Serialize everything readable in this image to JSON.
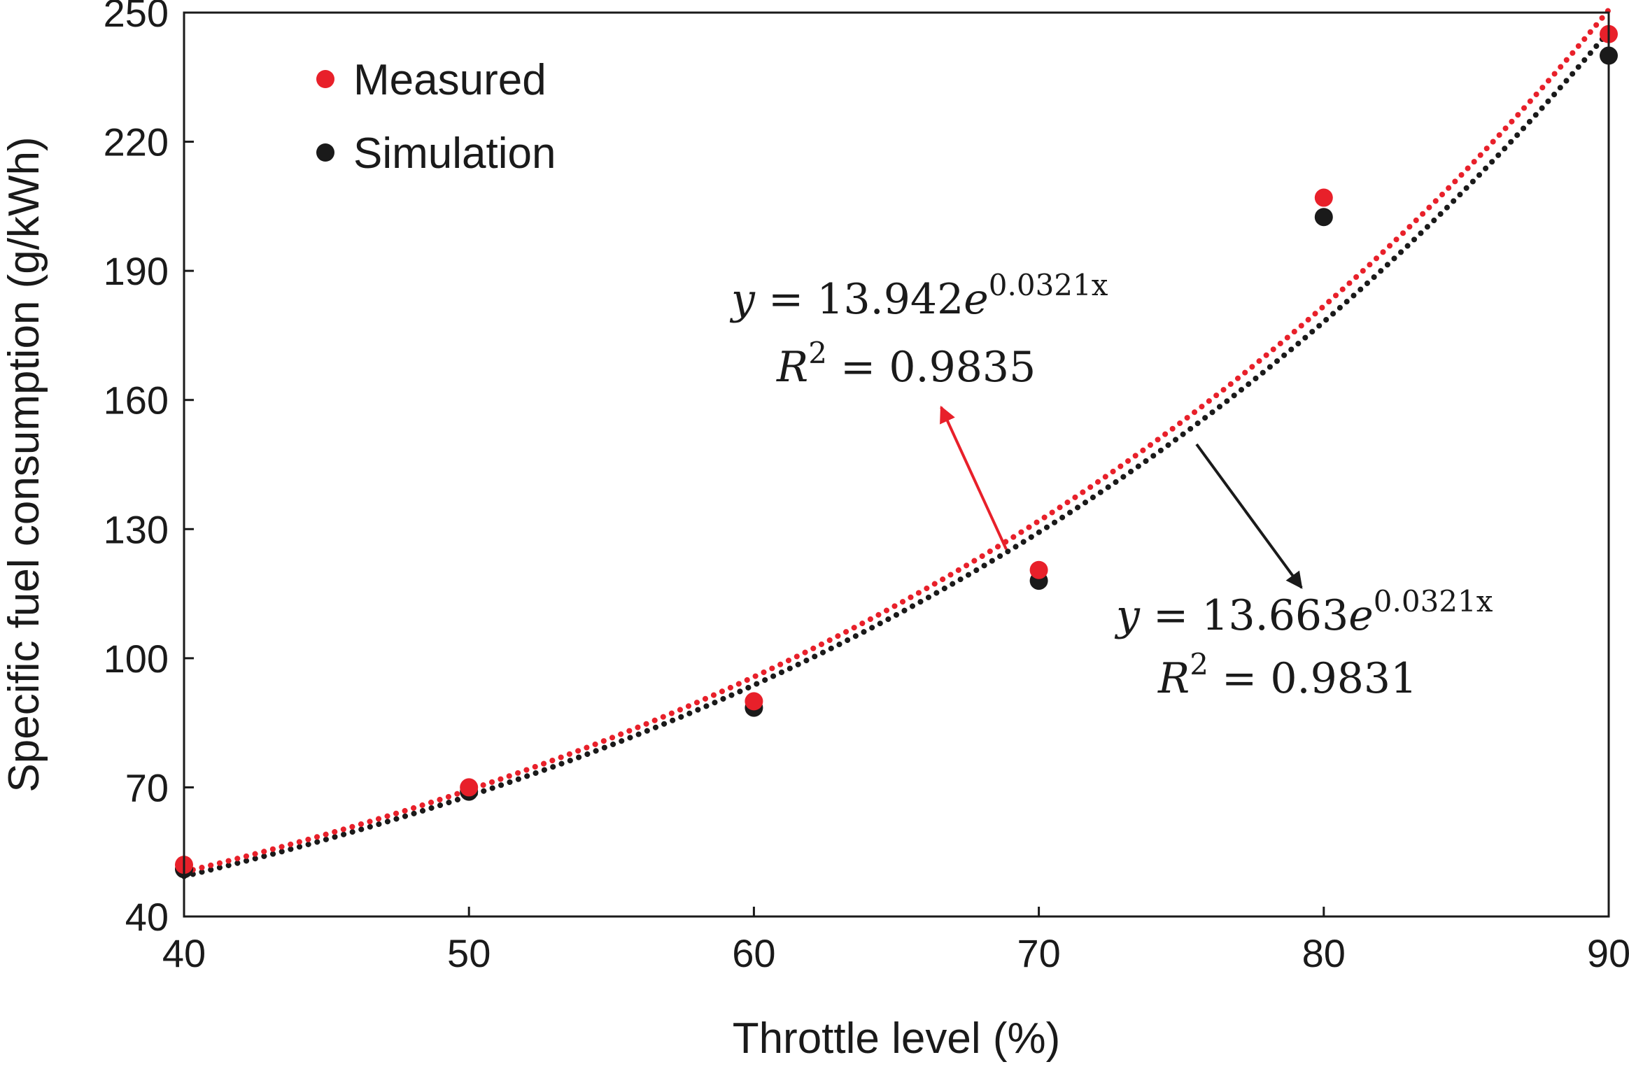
{
  "chart_data": {
    "type": "scatter",
    "title": "",
    "xlabel": "Throttle level (%)",
    "ylabel": "Specific fuel consumption (g/kWh)",
    "xlim": [
      40,
      90
    ],
    "ylim": [
      40,
      250
    ],
    "xticks": [
      40,
      50,
      60,
      70,
      80,
      90
    ],
    "yticks": [
      40,
      70,
      100,
      130,
      160,
      190,
      220,
      250
    ],
    "xtick_labels": [
      "40",
      "50",
      "60",
      "70",
      "80",
      "90"
    ],
    "ytick_labels": [
      "40",
      "70",
      "100",
      "130",
      "160",
      "190",
      "220",
      "250"
    ],
    "grid": false,
    "legend_position": "top-left",
    "series": [
      {
        "name": "Measured",
        "color": "#e8202a",
        "x": [
          40,
          50,
          60,
          70,
          80,
          90
        ],
        "y": [
          52,
          70,
          90,
          120.5,
          207,
          245
        ],
        "trendline": {
          "type": "exponential",
          "a": 13.942,
          "b": 0.0321,
          "equation_text": "y = 13.942e^0.0321x",
          "r2_text": "R² = 0.9835",
          "eq_prefix": "y = 13.942",
          "eq_base": "e",
          "eq_exponent": "0.0321x",
          "r2_lhs": "R",
          "r2_sup": "2",
          "r2_rhs": " = 0.9835"
        }
      },
      {
        "name": "Simulation",
        "color": "#1a1a1a",
        "x": [
          40,
          50,
          60,
          70,
          80,
          90
        ],
        "y": [
          51,
          69,
          88.5,
          118,
          202.5,
          240
        ],
        "trendline": {
          "type": "exponential",
          "a": 13.663,
          "b": 0.0321,
          "equation_text": "y = 13.663e^0.0321x",
          "r2_text": "R² = 0.9831",
          "eq_prefix": "y = 13.663",
          "eq_base": "e",
          "eq_exponent": "0.0321x",
          "r2_lhs": "R",
          "r2_sup": "2",
          "r2_rhs": " = 0.9831"
        }
      }
    ]
  }
}
